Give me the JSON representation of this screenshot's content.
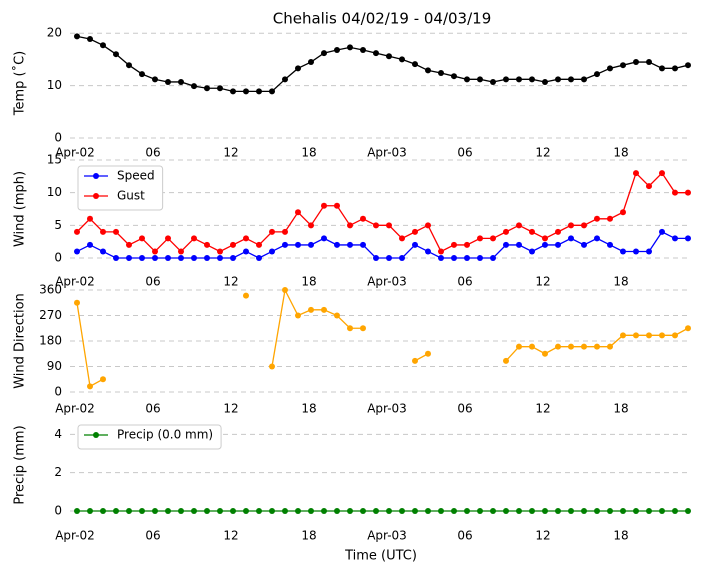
{
  "title": "Chehalis 04/02/19 - 04/03/19",
  "chart_data": [
    {
      "type": "line",
      "ylabel": "Temp (˚C)",
      "categories": [
        "Apr-02",
        null,
        null,
        null,
        null,
        null,
        "06",
        null,
        null,
        null,
        null,
        null,
        "12",
        null,
        null,
        null,
        null,
        null,
        "18",
        null,
        null,
        null,
        null,
        null,
        "Apr-03",
        null,
        null,
        null,
        null,
        null,
        "06",
        null,
        null,
        null,
        null,
        null,
        "12",
        null,
        null,
        null,
        null,
        null,
        "18",
        null,
        null,
        null,
        null,
        null
      ],
      "series": [
        {
          "color": "#000000",
          "values": [
            19.4,
            18.9,
            17.7,
            16.0,
            13.9,
            12.2,
            11.2,
            10.7,
            10.7,
            9.9,
            9.5,
            9.5,
            8.9,
            8.9,
            8.9,
            8.9,
            11.2,
            13.3,
            14.5,
            16.2,
            16.8,
            17.3,
            16.8,
            16.2,
            15.6,
            15.0,
            14.1,
            12.9,
            12.4,
            11.8,
            11.2,
            11.2,
            10.7,
            11.2,
            11.2,
            11.2,
            10.7,
            11.2,
            11.2,
            11.2,
            12.2,
            13.3,
            13.9,
            14.5,
            14.5,
            13.3,
            13.3,
            13.9
          ]
        }
      ],
      "ylim": [
        0,
        21
      ],
      "yticks": [
        0,
        10,
        20
      ],
      "grid": true
    },
    {
      "type": "line",
      "ylabel": "Wind (mph)",
      "categories": [
        "Apr-02",
        null,
        null,
        null,
        null,
        null,
        "06",
        null,
        null,
        null,
        null,
        null,
        "12",
        null,
        null,
        null,
        null,
        null,
        "18",
        null,
        null,
        null,
        null,
        null,
        "Apr-03",
        null,
        null,
        null,
        null,
        null,
        "06",
        null,
        null,
        null,
        null,
        null,
        "12",
        null,
        null,
        null,
        null,
        null,
        "18",
        null,
        null,
        null,
        null,
        null
      ],
      "series": [
        {
          "name": "Speed",
          "color": "#0000ff",
          "values": [
            1,
            2,
            1,
            0,
            0,
            0,
            0,
            0,
            0,
            0,
            0,
            0,
            0,
            1,
            0,
            1,
            2,
            2,
            2,
            3,
            2,
            2,
            2,
            0,
            0,
            0,
            2,
            1,
            0,
            0,
            0,
            0,
            0,
            2,
            2,
            1,
            2,
            2,
            3,
            2,
            3,
            2,
            1,
            1,
            1,
            4,
            3,
            3
          ]
        },
        {
          "name": "Gust",
          "color": "#ff0000",
          "values": [
            4,
            6,
            4,
            4,
            2,
            3,
            1,
            3,
            1,
            3,
            2,
            1,
            2,
            3,
            2,
            4,
            4,
            7,
            5,
            8,
            8,
            5,
            6,
            5,
            5,
            3,
            4,
            5,
            1,
            2,
            2,
            3,
            3,
            4,
            5,
            4,
            3,
            4,
            5,
            5,
            6,
            6,
            7,
            13,
            11,
            13,
            10,
            10
          ]
        }
      ],
      "ylim": [
        0,
        15
      ],
      "yticks": [
        0,
        5,
        10,
        15
      ],
      "grid": true,
      "legend": "upper left"
    },
    {
      "type": "line",
      "ylabel": "Wind Direction",
      "categories": [
        "Apr-02",
        null,
        null,
        null,
        null,
        null,
        "06",
        null,
        null,
        null,
        null,
        null,
        "12",
        null,
        null,
        null,
        null,
        null,
        "18",
        null,
        null,
        null,
        null,
        null,
        "Apr-03",
        null,
        null,
        null,
        null,
        null,
        "06",
        null,
        null,
        null,
        null,
        null,
        "12",
        null,
        null,
        null,
        null,
        null,
        "18",
        null,
        null,
        null,
        null,
        null
      ],
      "series": [
        {
          "color": "#ffa500",
          "values": [
            315,
            20,
            45,
            null,
            null,
            null,
            null,
            null,
            null,
            null,
            null,
            null,
            null,
            340,
            null,
            90,
            360,
            270,
            290,
            290,
            270,
            225,
            225,
            null,
            null,
            null,
            110,
            135,
            null,
            null,
            null,
            null,
            null,
            110,
            160,
            160,
            135,
            160,
            160,
            160,
            160,
            160,
            200,
            200,
            200,
            200,
            200,
            225
          ]
        }
      ],
      "ylim": [
        0,
        360
      ],
      "yticks": [
        0,
        90,
        180,
        270,
        360
      ],
      "grid": true
    },
    {
      "type": "line",
      "ylabel": "Precip (mm)",
      "xlabel": "Time (UTC)",
      "categories": [
        "Apr-02",
        null,
        null,
        null,
        null,
        null,
        "06",
        null,
        null,
        null,
        null,
        null,
        "12",
        null,
        null,
        null,
        null,
        null,
        "18",
        null,
        null,
        null,
        null,
        null,
        "Apr-03",
        null,
        null,
        null,
        null,
        null,
        "06",
        null,
        null,
        null,
        null,
        null,
        "12",
        null,
        null,
        null,
        null,
        null,
        "18",
        null,
        null,
        null,
        null,
        null
      ],
      "series": [
        {
          "name": "Precip (0.0 mm)",
          "color": "#008000",
          "values": [
            0,
            0,
            0,
            0,
            0,
            0,
            0,
            0,
            0,
            0,
            0,
            0,
            0,
            0,
            0,
            0,
            0,
            0,
            0,
            0,
            0,
            0,
            0,
            0,
            0,
            0,
            0,
            0,
            0,
            0,
            0,
            0,
            0,
            0,
            0,
            0,
            0,
            0,
            0,
            0,
            0,
            0,
            0,
            0,
            0,
            0,
            0,
            0
          ]
        }
      ],
      "ylim": [
        0,
        4.8
      ],
      "yticks": [
        0,
        2,
        4
      ],
      "grid": true,
      "legend": "upper left"
    }
  ]
}
